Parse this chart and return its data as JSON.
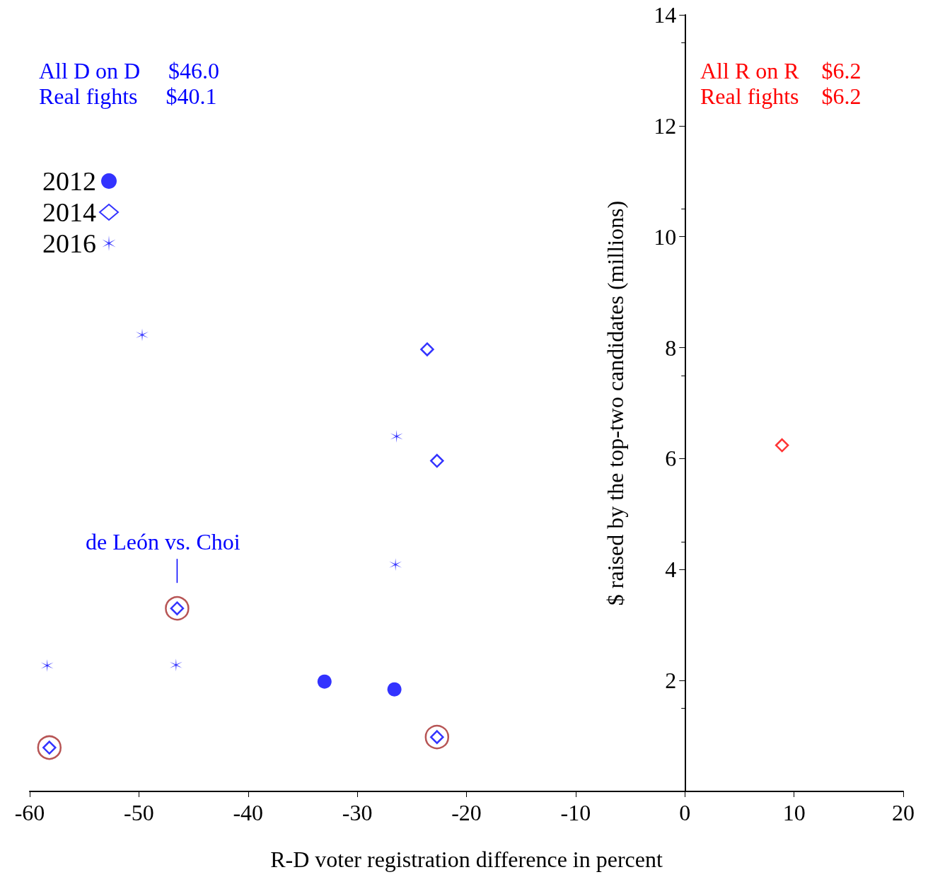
{
  "chart_data": {
    "type": "scatter",
    "xlabel": "R-D voter registration difference in percent",
    "ylabel": "$ raised by the top-two candidates (millions)",
    "xlim": [
      -60,
      20
    ],
    "xticks": [
      -60,
      -50,
      -40,
      -30,
      -20,
      -10,
      0,
      10,
      20
    ],
    "ylim": [
      0,
      14
    ],
    "yticks": [
      {
        "value": 0,
        "label": null
      },
      2,
      4,
      6,
      8,
      10,
      12,
      14
    ],
    "grid": false,
    "legend": "top left",
    "annotations": [
      "All D on D   $46.0",
      "Real fights   $40.1",
      "All R on R  $6.2",
      "Real fights  $6.2",
      {
        "text": "de León vs. Choi",
        "x": -46.5,
        "y": 3.3
      }
    ],
    "series": [
      {
        "name": "2012",
        "marker": "circle",
        "color": "#0000ff",
        "x": [
          -33.0,
          -26.6
        ],
        "values": [
          1.98,
          1.84
        ]
      },
      {
        "name": "2014",
        "marker": "diamond",
        "colors": [
          "#0000ff",
          "#0000ff",
          "#0000ff",
          "#0000ff",
          "#0000ff",
          "#ff0000"
        ],
        "x": [
          -23.6,
          -22.7,
          -46.5,
          -58.2,
          -22.7,
          8.9
        ],
        "values": [
          7.97,
          5.96,
          3.3,
          0.79,
          0.98,
          6.24
        ]
      },
      {
        "name": "2016",
        "marker": "cross",
        "color": "#0000ff",
        "x": [
          -49.7,
          -26.4,
          -26.5,
          -58.4,
          -46.6
        ],
        "values": [
          8.23,
          6.4,
          4.09,
          2.27,
          2.28
        ]
      },
      {
        "marker": "circle",
        "color": "#a52a2a",
        "x": [
          -46.5,
          -58.2,
          -22.7
        ],
        "values": [
          3.3,
          0.79,
          0.98
        ]
      }
    ]
  }
}
